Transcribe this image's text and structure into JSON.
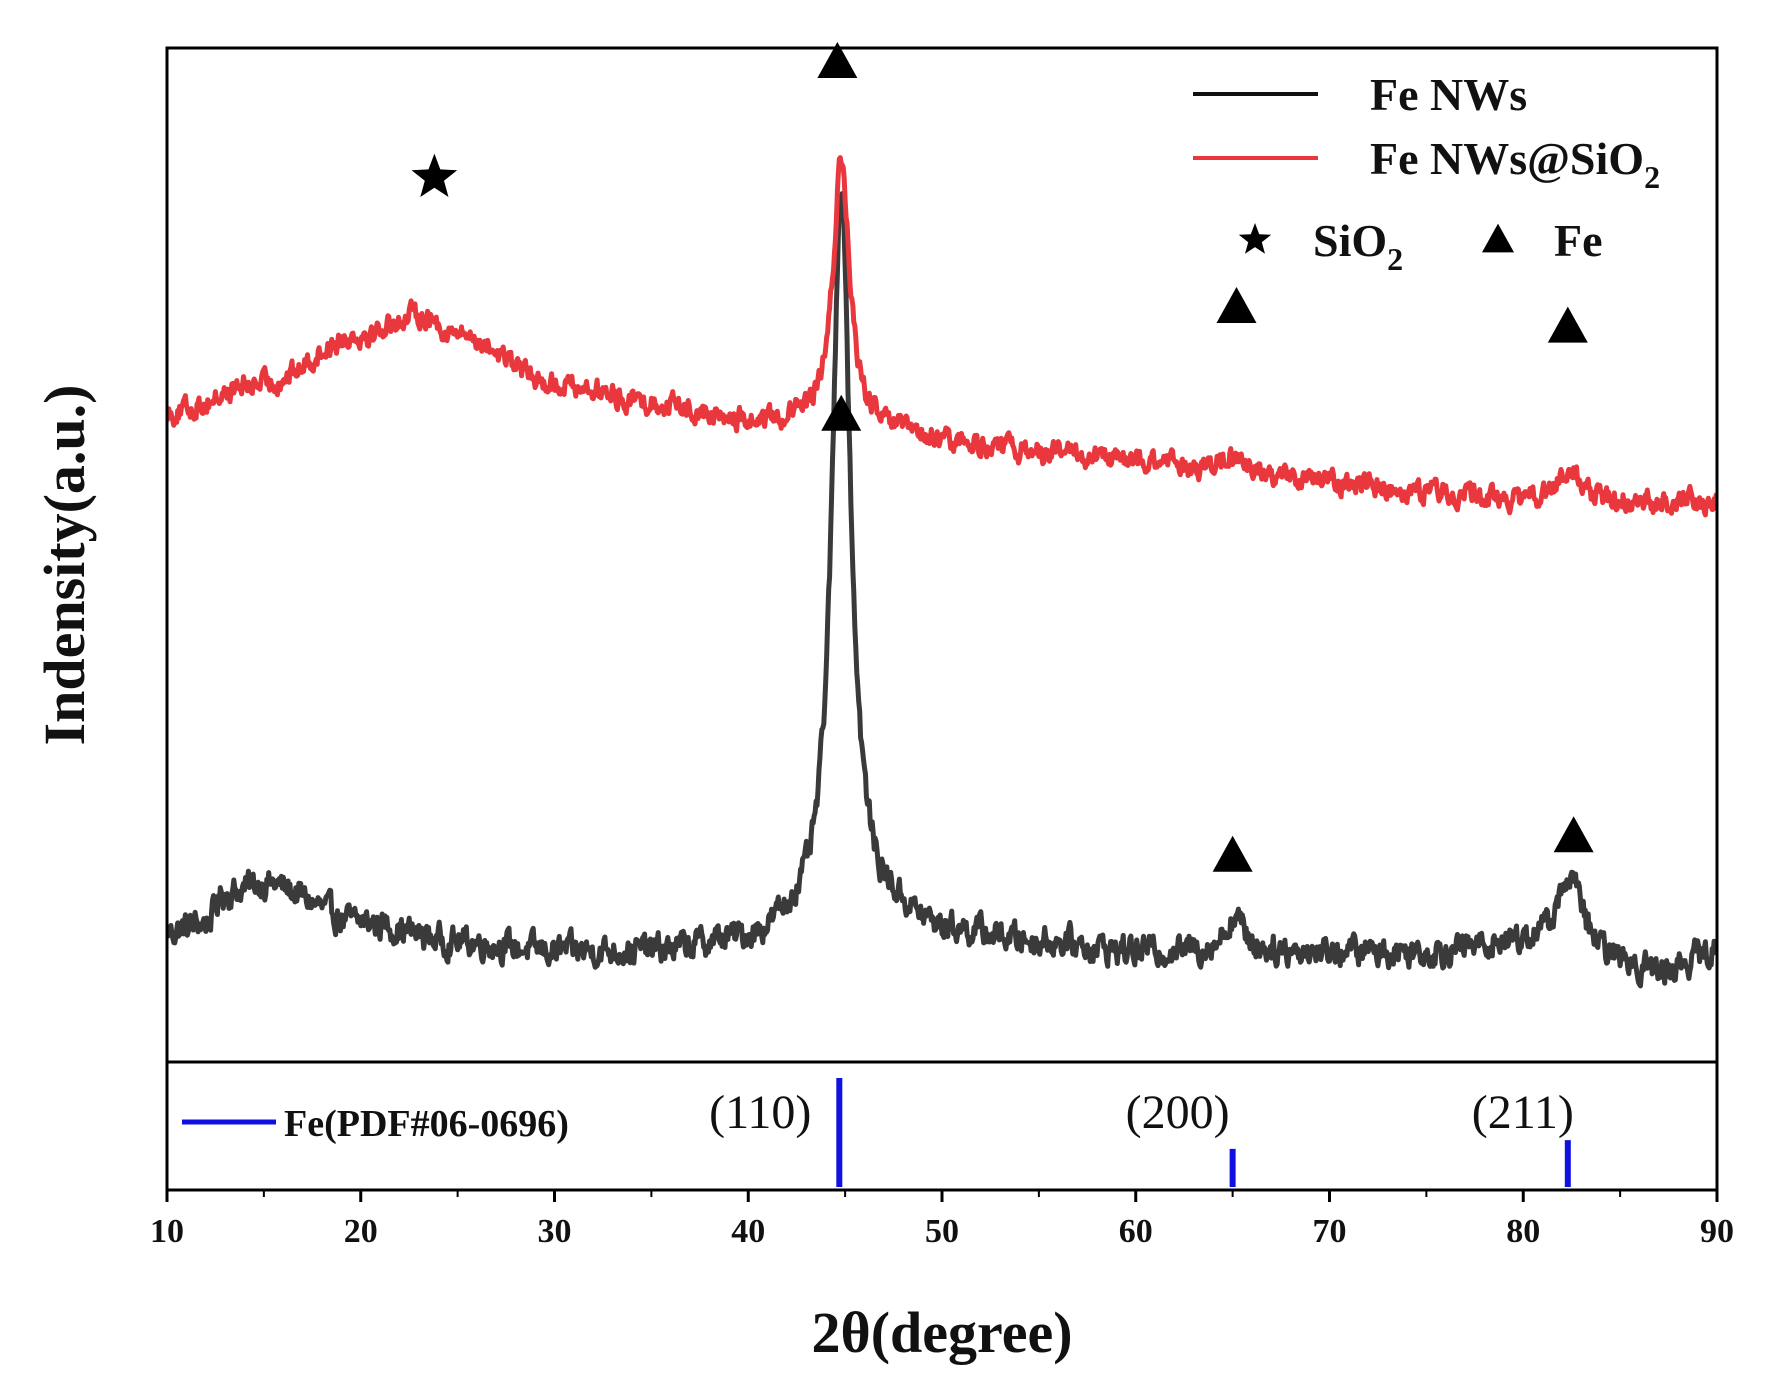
{
  "chart_data": {
    "type": "line",
    "title": "",
    "xlabel": "2θ(degree)",
    "ylabel": "Indensity(a.u.)",
    "xlim": [
      10,
      90
    ],
    "xticks": [
      10,
      20,
      30,
      40,
      50,
      60,
      70,
      80,
      90
    ],
    "y_units": "arbitrary (0 = bottom of upper panel, 100 = top)",
    "series": [
      {
        "name": "Fe NWs",
        "color": "#3a3a3a",
        "baseline": [
          [
            10,
            11
          ],
          [
            12,
            12
          ],
          [
            13,
            15
          ],
          [
            15,
            16
          ],
          [
            20,
            12
          ],
          [
            25,
            10
          ],
          [
            30,
            9
          ],
          [
            35,
            9
          ],
          [
            40,
            10
          ],
          [
            43,
            12
          ],
          [
            45,
            16
          ],
          [
            47,
            13
          ],
          [
            50,
            11
          ],
          [
            55,
            10
          ],
          [
            60,
            9
          ],
          [
            63,
            9
          ],
          [
            65,
            9
          ],
          [
            70,
            9
          ],
          [
            75,
            9
          ],
          [
            80,
            10
          ],
          [
            82,
            10
          ],
          [
            85,
            8
          ],
          [
            87,
            7
          ],
          [
            90,
            9
          ]
        ],
        "peaks": [
          {
            "center": 44.8,
            "height": 72,
            "width": 0.55
          },
          {
            "center": 65.1,
            "height": 3.5,
            "width": 0.6
          },
          {
            "center": 82.4,
            "height": 7,
            "width": 0.7
          }
        ],
        "noise": 1.2
      },
      {
        "name": "Fe NWs@SiO2",
        "color": "#e8383d",
        "baseline": [
          [
            10,
            64
          ],
          [
            15,
            67
          ],
          [
            20,
            72
          ],
          [
            23,
            74
          ],
          [
            25,
            72
          ],
          [
            30,
            67
          ],
          [
            35,
            65
          ],
          [
            40,
            63
          ],
          [
            43,
            63
          ],
          [
            45,
            63
          ],
          [
            47,
            62
          ],
          [
            50,
            61
          ],
          [
            55,
            60
          ],
          [
            60,
            59
          ],
          [
            65,
            58
          ],
          [
            70,
            57
          ],
          [
            75,
            56
          ],
          [
            80,
            55
          ],
          [
            85,
            55
          ],
          [
            90,
            55
          ]
        ],
        "peaks": [
          {
            "center": 44.8,
            "height": 27,
            "width": 0.5
          },
          {
            "center": 65.0,
            "height": 1.5,
            "width": 0.6
          },
          {
            "center": 82.4,
            "height": 3,
            "width": 0.7
          }
        ],
        "noise": 0.9
      }
    ],
    "legend": [
      {
        "label": "Fe NWs",
        "color": "#111111"
      },
      {
        "label_main": "Fe NWs@SiO",
        "label_sub": "2",
        "color": "#e8383d"
      }
    ],
    "marker_legend": [
      {
        "symbol": "star",
        "label_main": "SiO",
        "label_sub": "2"
      },
      {
        "symbol": "triangle",
        "label": "Fe"
      }
    ],
    "annotations": [
      {
        "symbol": "star",
        "x": 23.8,
        "y": 88
      },
      {
        "symbol": "triangle",
        "x": 44.6,
        "y": 100
      },
      {
        "symbol": "triangle",
        "x": 65.2,
        "y": 75
      },
      {
        "symbol": "triangle",
        "x": 82.3,
        "y": 73
      },
      {
        "symbol": "triangle",
        "x": 44.8,
        "y": 64
      },
      {
        "symbol": "triangle",
        "x": 65.0,
        "y": 19
      },
      {
        "symbol": "triangle",
        "x": 82.6,
        "y": 21
      }
    ],
    "reference": {
      "label": "Fe(PDF#06-0696)",
      "color": "#1010e0",
      "lines": [
        {
          "x": 44.7,
          "intensity": 100,
          "hkl": "(110)"
        },
        {
          "x": 65.0,
          "intensity": 35,
          "hkl": "(200)"
        },
        {
          "x": 82.3,
          "intensity": 43,
          "hkl": "(211)"
        }
      ]
    }
  }
}
